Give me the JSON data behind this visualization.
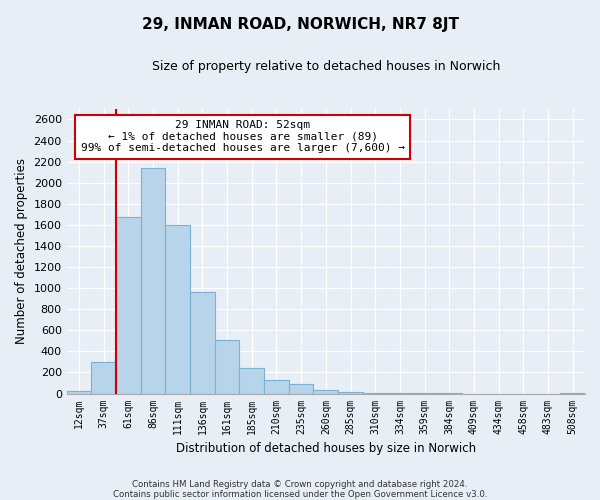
{
  "title": "29, INMAN ROAD, NORWICH, NR7 8JT",
  "subtitle": "Size of property relative to detached houses in Norwich",
  "xlabel": "Distribution of detached houses by size in Norwich",
  "ylabel": "Number of detached properties",
  "bar_labels": [
    "12sqm",
    "37sqm",
    "61sqm",
    "86sqm",
    "111sqm",
    "136sqm",
    "161sqm",
    "185sqm",
    "210sqm",
    "235sqm",
    "260sqm",
    "285sqm",
    "310sqm",
    "334sqm",
    "359sqm",
    "384sqm",
    "409sqm",
    "434sqm",
    "458sqm",
    "483sqm",
    "508sqm"
  ],
  "bar_values": [
    20,
    300,
    1670,
    2140,
    1600,
    960,
    510,
    245,
    125,
    95,
    30,
    15,
    5,
    2,
    2,
    1,
    0,
    0,
    0,
    0,
    10
  ],
  "bar_color": "#b8d4ea",
  "bar_edge_color": "#7ab0d4",
  "marker_color": "#cc0000",
  "annotation_title": "29 INMAN ROAD: 52sqm",
  "annotation_line1": "← 1% of detached houses are smaller (89)",
  "annotation_line2": "99% of semi-detached houses are larger (7,600) →",
  "annotation_box_color": "#ffffff",
  "annotation_box_edge_color": "#cc0000",
  "ylim": [
    0,
    2700
  ],
  "yticks": [
    0,
    200,
    400,
    600,
    800,
    1000,
    1200,
    1400,
    1600,
    1800,
    2000,
    2200,
    2400,
    2600
  ],
  "footnote1": "Contains HM Land Registry data © Crown copyright and database right 2024.",
  "footnote2": "Contains public sector information licensed under the Open Government Licence v3.0.",
  "bg_color": "#e8eef5",
  "plot_bg_color": "#e8eef5"
}
